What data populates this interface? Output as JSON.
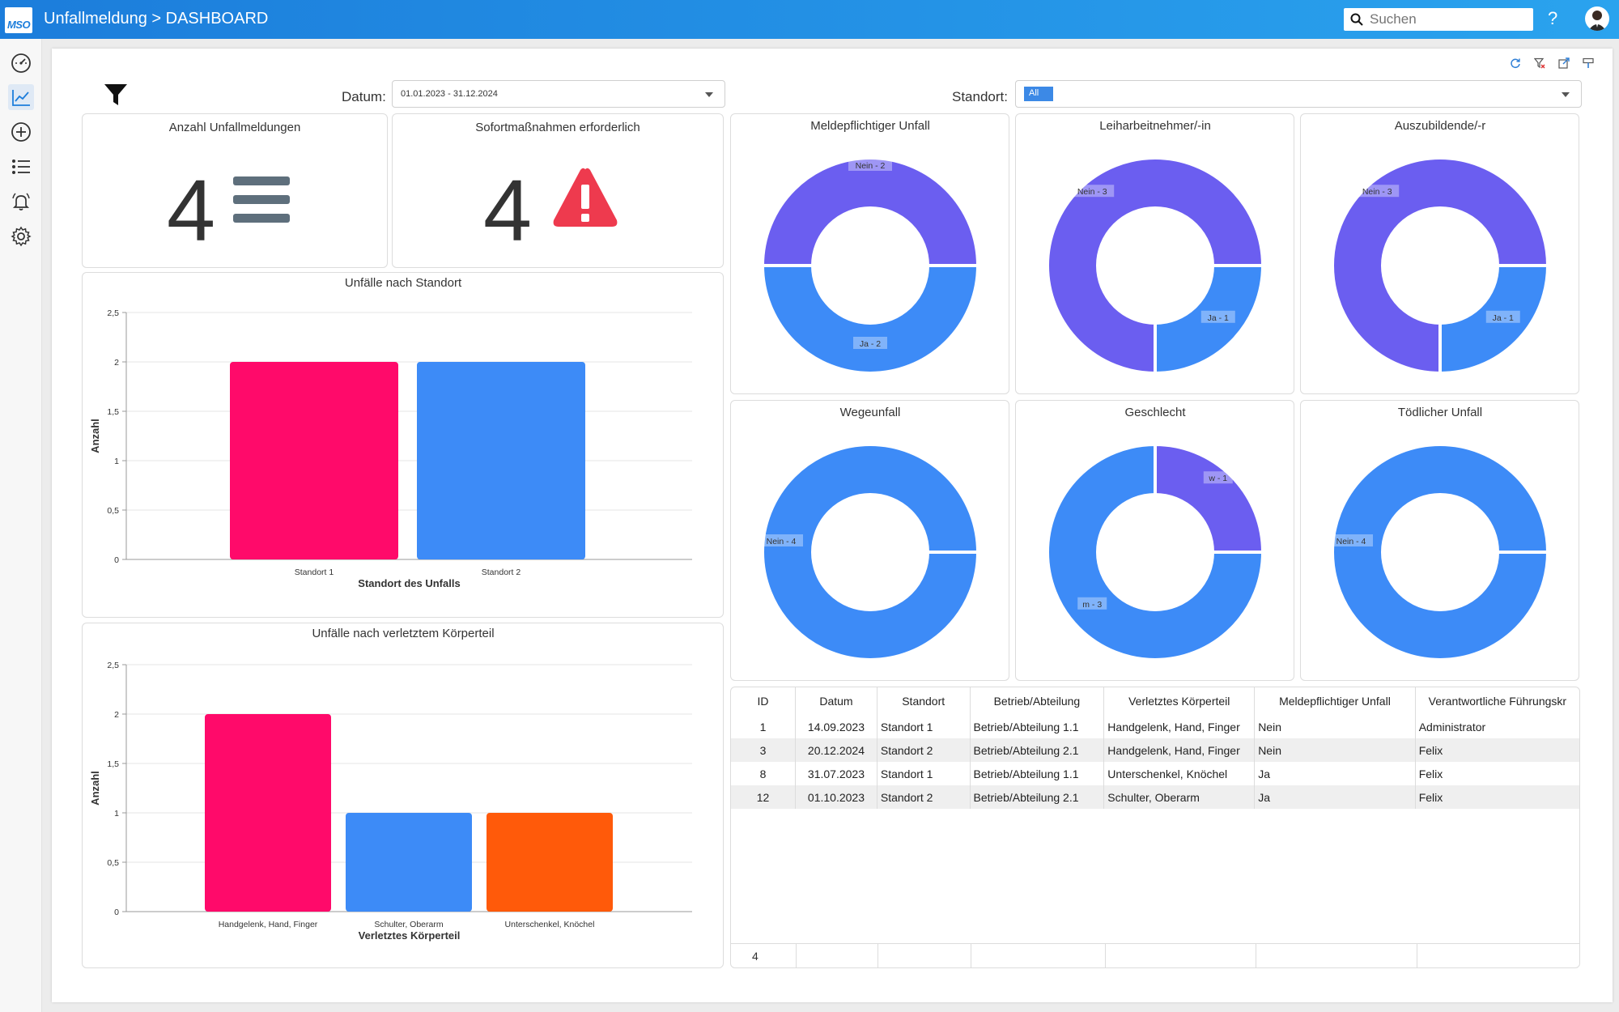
{
  "app": {
    "logo_text": "MSO",
    "title": "Unfallmeldung > DASHBOARD"
  },
  "search": {
    "placeholder": "Suchen"
  },
  "help": "?",
  "sidebar": {
    "items": [
      {
        "icon": "speedometer-icon"
      },
      {
        "icon": "chart-line-icon",
        "active": true
      },
      {
        "icon": "plus-circle-icon"
      },
      {
        "icon": "list-icon"
      },
      {
        "icon": "bell-icon"
      },
      {
        "icon": "gear-icon"
      }
    ]
  },
  "filters": {
    "date_label": "Datum:",
    "date_value": "01.01.2023 - 31.12.2024",
    "location_label": "Standort:",
    "location_chip": "All"
  },
  "kpis": [
    {
      "title": "Anzahl Unfallmeldungen",
      "value": "4",
      "icon": "list-lines-icon"
    },
    {
      "title": "Sofortmaßnahmen erforderlich",
      "value": "4",
      "icon": "warning-icon"
    }
  ],
  "colors": {
    "purple": "#6b5ef0",
    "blue": "#3d8bf7",
    "pink": "#ff0a6a",
    "orange": "#ff5a0a"
  },
  "chart_data": [
    {
      "type": "bar",
      "title": "Unfälle nach Standort",
      "xlabel": "Standort des Unfalls",
      "ylabel": "Anzahl",
      "categories": [
        "Standort 1",
        "Standort 2"
      ],
      "values": [
        2,
        2
      ],
      "colors": [
        "#ff0a6a",
        "#3d8bf7"
      ],
      "ylim": [
        0,
        2.5
      ],
      "yticks": [
        "0",
        "0,5",
        "1",
        "1,5",
        "2",
        "2,5"
      ]
    },
    {
      "type": "bar",
      "title": "Unfälle nach verletztem Körperteil",
      "xlabel": "Verletztes Körperteil",
      "ylabel": "Anzahl",
      "categories": [
        "Handgelenk, Hand, Finger",
        "Schulter, Oberarm",
        "Unterschenkel, Knöchel"
      ],
      "values": [
        2,
        1,
        1
      ],
      "colors": [
        "#ff0a6a",
        "#3d8bf7",
        "#ff5a0a"
      ],
      "ylim": [
        0,
        2.5
      ],
      "yticks": [
        "0",
        "0,5",
        "1",
        "1,5",
        "2",
        "2,5"
      ]
    },
    {
      "type": "pie",
      "title": "Meldepflichtiger Unfall",
      "slices": [
        {
          "label": "Nein - 2",
          "value": 2,
          "color": "#6b5ef0"
        },
        {
          "label": "Ja - 2",
          "value": 2,
          "color": "#3d8bf7"
        }
      ]
    },
    {
      "type": "pie",
      "title": "Leiharbeitnehmer/-in",
      "slices": [
        {
          "label": "Ja - 1",
          "value": 1,
          "color": "#3d8bf7"
        },
        {
          "label": "Nein - 3",
          "value": 3,
          "color": "#6b5ef0"
        }
      ]
    },
    {
      "type": "pie",
      "title": "Auszubildende/-r",
      "slices": [
        {
          "label": "Ja - 1",
          "value": 1,
          "color": "#3d8bf7"
        },
        {
          "label": "Nein - 3",
          "value": 3,
          "color": "#6b5ef0"
        }
      ]
    },
    {
      "type": "pie",
      "title": "Wegeunfall",
      "slices": [
        {
          "label": "Nein - 4",
          "value": 4,
          "color": "#3d8bf7"
        }
      ]
    },
    {
      "type": "pie",
      "title": "Geschlecht",
      "slices": [
        {
          "label": "w - 1",
          "value": 1,
          "color": "#6b5ef0"
        },
        {
          "label": "m - 3",
          "value": 3,
          "color": "#3d8bf7"
        }
      ]
    },
    {
      "type": "pie",
      "title": "Tödlicher Unfall",
      "slices": [
        {
          "label": "Nein - 4",
          "value": 4,
          "color": "#3d8bf7"
        }
      ]
    }
  ],
  "table": {
    "columns": [
      "ID",
      "Datum",
      "Standort",
      "Betrieb/Abteilung",
      "Verletztes Körperteil",
      "Meldepflichtiger Unfall",
      "Verantwortliche Führungskr"
    ],
    "rows": [
      [
        "1",
        "14.09.2023",
        "Standort 1",
        "Betrieb/Abteilung 1.1",
        "Handgelenk, Hand, Finger",
        "Nein",
        "Administrator"
      ],
      [
        "3",
        "20.12.2024",
        "Standort 2",
        "Betrieb/Abteilung 2.1",
        "Handgelenk, Hand, Finger",
        "Nein",
        "Felix"
      ],
      [
        "8",
        "31.07.2023",
        "Standort 1",
        "Betrieb/Abteilung 1.1",
        "Unterschenkel, Knöchel",
        "Ja",
        "Felix"
      ],
      [
        "12",
        "01.10.2023",
        "Standort 2",
        "Betrieb/Abteilung 2.1",
        "Schulter, Oberarm",
        "Ja",
        "Felix"
      ]
    ],
    "footer_count": "4"
  }
}
